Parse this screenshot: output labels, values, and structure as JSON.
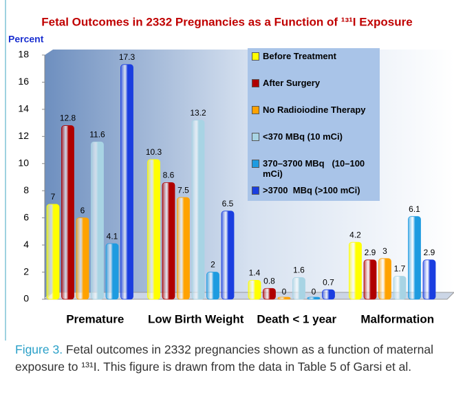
{
  "chart_data": {
    "type": "bar",
    "title": "Fetal Outcomes in 2332 Pregnancies as a Function of ¹³¹I Exposure",
    "y_label": "Percent",
    "categories": [
      "Premature",
      "Low Birth Weight",
      "Death < 1 year",
      "Malformation"
    ],
    "series": [
      {
        "name": "Before Treatment",
        "color": "#ffff00",
        "values": [
          7,
          10.3,
          1.4,
          4.2
        ]
      },
      {
        "name": "After Surgery",
        "color": "#b00000",
        "values": [
          12.8,
          8.6,
          0.8,
          2.9
        ]
      },
      {
        "name": "No Radioiodine Therapy",
        "color": "#ffa200",
        "values": [
          6,
          7.5,
          0,
          3
        ]
      },
      {
        "name": "<370 MBq (10 mCi)",
        "color": "#a8d4e4",
        "values": [
          11.6,
          13.2,
          1.6,
          1.7
        ]
      },
      {
        "name": "370–3700 MBq   (10–100 mCi)",
        "color": "#1e9be0",
        "values": [
          4.1,
          2,
          0,
          6.1
        ]
      },
      {
        "name": ">3700  MBq (>100 mCi)",
        "color": "#1a3ee0",
        "values": [
          17.3,
          6.5,
          0.7,
          2.9
        ]
      }
    ],
    "ylim": [
      0,
      18
    ],
    "yticks": [
      0,
      2,
      4,
      6,
      8,
      10,
      12,
      14,
      16,
      18
    ],
    "grid": false,
    "caption_label": "Figure 3.",
    "caption_text": " Fetal outcomes in 2332 pregnancies shown as a function of maternal exposure to ¹³¹I. This figure is drawn from the data in Table 5 of Garsi et al."
  }
}
